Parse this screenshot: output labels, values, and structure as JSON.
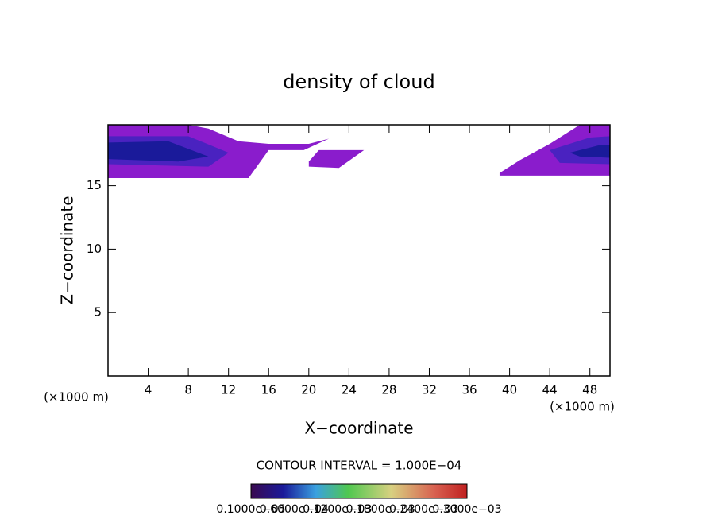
{
  "chart_data": {
    "type": "contour",
    "title": "density of cloud",
    "x_label": "X−coordinate",
    "y_label": "Z−coordinate",
    "x_unit": "(×1000 m)",
    "y_unit": "(×1000 m)",
    "contour_note": "CONTOUR INTERVAL = 1.000E−04",
    "xlim": [
      0,
      50
    ],
    "ylim": [
      0,
      19.8
    ],
    "xticks": [
      4,
      8,
      12,
      16,
      20,
      24,
      28,
      32,
      36,
      40,
      44,
      48
    ],
    "yticks": [
      5,
      10,
      15
    ],
    "regions": [
      {
        "color": "#8a1ccc",
        "x": [
          0,
          8,
          10,
          13,
          16,
          20,
          22,
          19.5,
          16,
          14,
          0
        ],
        "z": [
          19.8,
          19.8,
          19.5,
          18.5,
          18.3,
          18.3,
          18.7,
          17.8,
          17.8,
          15.6,
          15.6
        ]
      },
      {
        "color": "#8a1ccc",
        "x": [
          20,
          21,
          25.5,
          23,
          20
        ],
        "z": [
          16.9,
          17.8,
          17.8,
          16.4,
          16.5
        ]
      },
      {
        "color": "#8a1ccc",
        "x": [
          39,
          41,
          44,
          47,
          50,
          50,
          39
        ],
        "z": [
          16,
          17,
          18.3,
          19.8,
          19.8,
          15.8,
          15.8
        ]
      },
      {
        "color": "#4a22c0",
        "x": [
          0,
          8,
          12,
          10,
          0
        ],
        "z": [
          18.9,
          18.9,
          17.6,
          16.5,
          16.7
        ]
      },
      {
        "color": "#4a22c0",
        "x": [
          44,
          48,
          50,
          50,
          45
        ],
        "z": [
          17.8,
          18.8,
          18.9,
          16.7,
          16.8
        ]
      },
      {
        "color": "#1a1a9a",
        "x": [
          0,
          6,
          10,
          7,
          0
        ],
        "z": [
          18.4,
          18.5,
          17.3,
          16.9,
          17.1
        ]
      },
      {
        "color": "#1a1a9a",
        "x": [
          46,
          49,
          50,
          50,
          47
        ],
        "z": [
          17.6,
          18.2,
          18.2,
          17.2,
          17.3
        ]
      }
    ],
    "colorbar_labels": [
      "0.1000e−05",
      "0.6000e−04",
      "0.1200e−03",
      "0.1800e−03",
      "0.2400e−03",
      "0.3000e−03"
    ]
  }
}
